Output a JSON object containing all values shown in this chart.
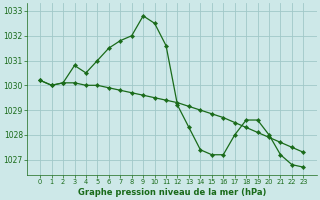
{
  "line1_x": [
    0,
    1,
    2,
    3,
    4,
    5,
    6,
    7,
    8,
    9,
    10,
    11,
    12,
    13,
    14,
    15,
    16,
    17,
    18,
    19,
    20,
    21,
    22,
    23
  ],
  "line1_y": [
    1030.2,
    1030.0,
    1030.1,
    1030.8,
    1030.5,
    1031.0,
    1031.5,
    1031.8,
    1032.0,
    1032.8,
    1032.5,
    1031.6,
    1029.2,
    1028.3,
    1027.4,
    1027.2,
    1027.2,
    1028.0,
    1028.6,
    1028.6,
    1028.0,
    1027.2,
    1026.8,
    1026.7
  ],
  "line2_x": [
    0,
    1,
    2,
    3,
    4,
    5,
    6,
    7,
    8,
    9,
    10,
    11,
    12,
    13,
    14,
    15,
    16,
    17,
    18,
    19,
    20,
    21,
    22,
    23
  ],
  "line2_y": [
    1030.2,
    1030.0,
    1030.1,
    1030.1,
    1030.0,
    1030.0,
    1029.9,
    1029.8,
    1029.7,
    1029.6,
    1029.5,
    1029.4,
    1029.3,
    1029.15,
    1029.0,
    1028.85,
    1028.7,
    1028.5,
    1028.3,
    1028.1,
    1027.9,
    1027.7,
    1027.5,
    1027.3
  ],
  "line_color": "#1a6b1a",
  "bg_color": "#cde8e8",
  "grid_color": "#a0c8c8",
  "xlabel": "Graphe pression niveau de la mer (hPa)",
  "ylim": [
    1026.4,
    1033.3
  ],
  "yticks": [
    1027,
    1028,
    1029,
    1030,
    1031,
    1032,
    1033
  ],
  "xticks": [
    0,
    1,
    2,
    3,
    4,
    5,
    6,
    7,
    8,
    9,
    10,
    11,
    12,
    13,
    14,
    15,
    16,
    17,
    18,
    19,
    20,
    21,
    22,
    23
  ]
}
